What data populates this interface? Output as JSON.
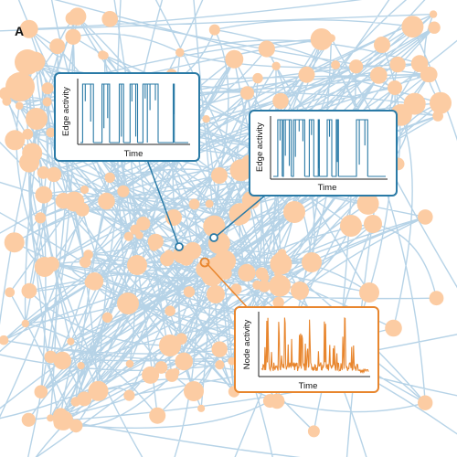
{
  "panel_letter": "A",
  "colors": {
    "edge": "#a9cbe3",
    "node": "#fccca3",
    "edge_accent": "#2a7aa6",
    "node_accent": "#e8862e",
    "text": "#111111"
  },
  "insets": [
    {
      "id": "edge-left",
      "kind": "edge",
      "xlabel": "Time",
      "ylabel": "Edge activity"
    },
    {
      "id": "edge-right",
      "kind": "edge",
      "xlabel": "Time",
      "ylabel": "Edge activity"
    },
    {
      "id": "node",
      "kind": "node",
      "xlabel": "Time",
      "ylabel": "Node activity"
    }
  ]
}
